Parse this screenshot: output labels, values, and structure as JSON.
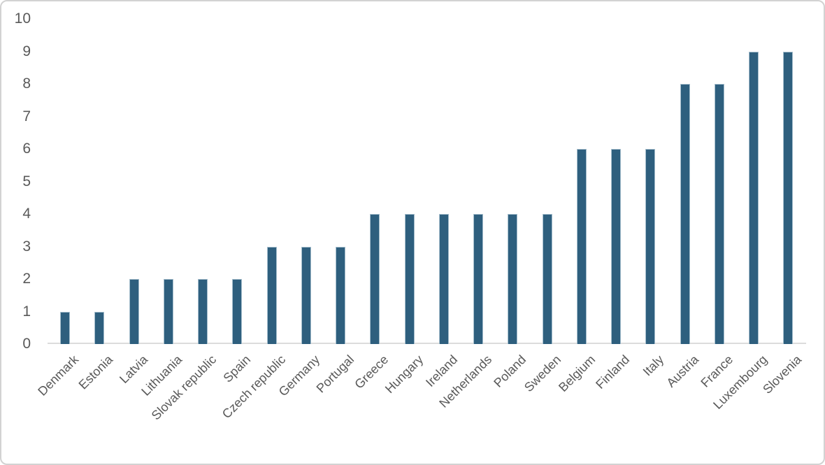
{
  "chart_data": {
    "type": "bar",
    "title": "",
    "xlabel": "",
    "ylabel": "",
    "categories": [
      "Denmark",
      "Estonia",
      "Latvia",
      "Lithuania",
      "Slovak republic",
      "Spain",
      "Czech republic",
      "Germany",
      "Portugal",
      "Greece",
      "Hungary",
      "Ireland",
      "Netherlands",
      "Poland",
      "Sweden",
      "Belgium",
      "Finland",
      "Italy",
      "Austria",
      "France",
      "Luxembourg",
      "Slovenia"
    ],
    "values": [
      1,
      1,
      2,
      2,
      2,
      2,
      3,
      3,
      3,
      4,
      4,
      4,
      4,
      4,
      4,
      6,
      6,
      6,
      8,
      8,
      9,
      9
    ],
    "ylim": [
      0,
      10
    ],
    "yticks": [
      0,
      1,
      2,
      3,
      4,
      5,
      6,
      7,
      8,
      9,
      10
    ],
    "grid": false,
    "legend": false,
    "x_label_rotation_deg": 45,
    "colors": {
      "bar_fill": "#2e5f7e",
      "bar_border": "#a4bdcc",
      "axis_line": "#dcdcdc",
      "tick_label": "#595959",
      "frame_border": "#d2d2d2",
      "background": "#ffffff"
    }
  }
}
